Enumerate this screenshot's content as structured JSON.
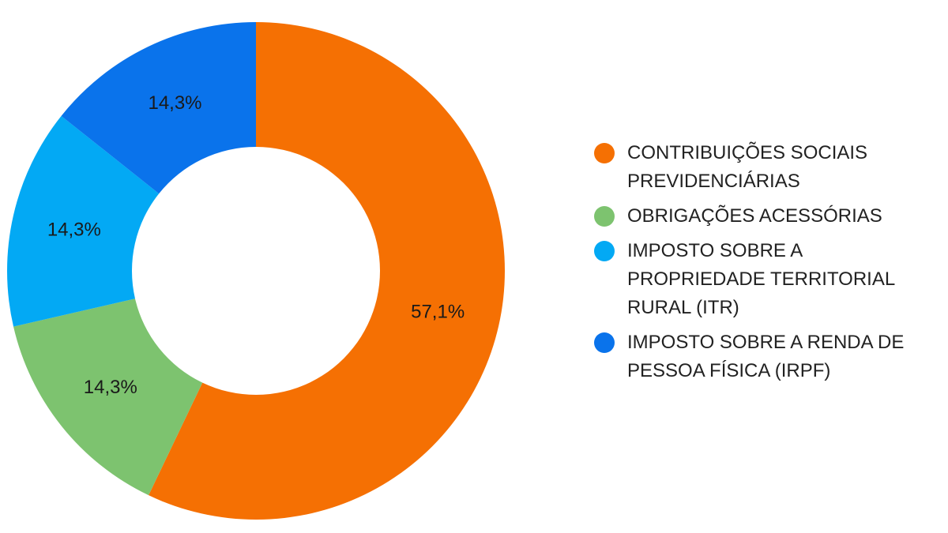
{
  "chart_data": {
    "type": "pie",
    "donut": true,
    "start_angle_deg": 0,
    "direction": "clockwise",
    "legend_position": "right",
    "categories": [
      "CONTRIBUIÇÕES SOCIAIS PREVIDENCIÁRIAS",
      "OBRIGAÇÕES ACESSÓRIAS",
      "IMPOSTO SOBRE A PROPRIEDADE TERRITORIAL RURAL (ITR)",
      "IMPOSTO SOBRE A RENDA DE PESSOA FÍSICA (IRPF)"
    ],
    "values": [
      57.1,
      14.3,
      14.3,
      14.3
    ],
    "data_labels": [
      "57,1%",
      "14,3%",
      "14,3%",
      "14,3%"
    ],
    "colors": [
      "#F57003",
      "#7DC36F",
      "#03A9F4",
      "#0A73EB"
    ]
  }
}
